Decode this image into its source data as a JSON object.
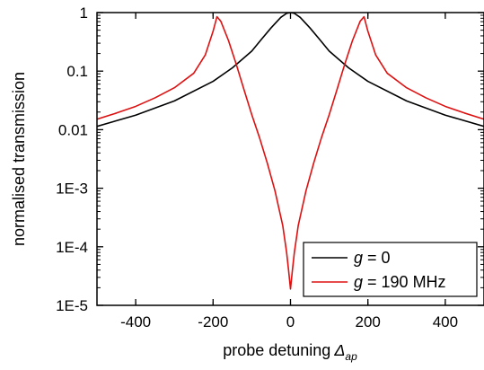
{
  "chart_data": {
    "type": "line",
    "xlabel": "probe detuning",
    "xlabel_symbol": "Δ",
    "xlabel_subscript": "ap",
    "ylabel": "normalised transmission",
    "xlim": [
      -500,
      500
    ],
    "ylim": [
      1e-05,
      1
    ],
    "yscale": "log",
    "x_ticks": [
      -400,
      -200,
      0,
      200,
      400
    ],
    "x_tick_labels": [
      "-400",
      "-200",
      "0",
      "200",
      "400"
    ],
    "y_ticks": [
      1,
      0.1,
      0.01,
      0.001,
      0.0001,
      1e-05
    ],
    "y_tick_labels": [
      "1",
      "0.1",
      "0.01",
      "1E-3",
      "1E-4",
      "1E-5"
    ],
    "grid": false,
    "legend_position": "bottom-right",
    "series": [
      {
        "legend_var": "g",
        "legend_rest": " = 0",
        "color": "#000000",
        "x": [
          -500,
          -400,
          -300,
          -200,
          -150,
          -100,
          -75,
          -50,
          -25,
          -10,
          0,
          10,
          25,
          50,
          75,
          100,
          150,
          200,
          300,
          400,
          500
        ],
        "y": [
          0.0114,
          0.0177,
          0.031,
          0.067,
          0.114,
          0.22,
          0.35,
          0.55,
          0.83,
          0.97,
          1.0,
          0.97,
          0.83,
          0.55,
          0.35,
          0.22,
          0.114,
          0.067,
          0.031,
          0.0177,
          0.0114
        ]
      },
      {
        "legend_var": "g",
        "legend_rest": " = 190 MHz",
        "color": "#dd1111",
        "x": [
          -500,
          -450,
          -400,
          -350,
          -300,
          -250,
          -220,
          -200,
          -190,
          -180,
          -160,
          -140,
          -120,
          -100,
          -80,
          -60,
          -40,
          -20,
          -10,
          -5,
          0,
          5,
          10,
          20,
          40,
          60,
          80,
          100,
          120,
          140,
          160,
          180,
          190,
          200,
          220,
          250,
          300,
          350,
          400,
          450,
          500
        ],
        "y": [
          0.0151,
          0.0192,
          0.025,
          0.035,
          0.052,
          0.092,
          0.19,
          0.48,
          0.85,
          0.71,
          0.33,
          0.13,
          0.048,
          0.018,
          0.0073,
          0.0027,
          0.0009,
          0.00023,
          8e-05,
          4e-05,
          1.9e-05,
          4e-05,
          8e-05,
          0.00023,
          0.0009,
          0.0027,
          0.0073,
          0.018,
          0.048,
          0.13,
          0.33,
          0.71,
          0.85,
          0.48,
          0.19,
          0.092,
          0.052,
          0.035,
          0.025,
          0.0192,
          0.0151
        ]
      }
    ]
  }
}
